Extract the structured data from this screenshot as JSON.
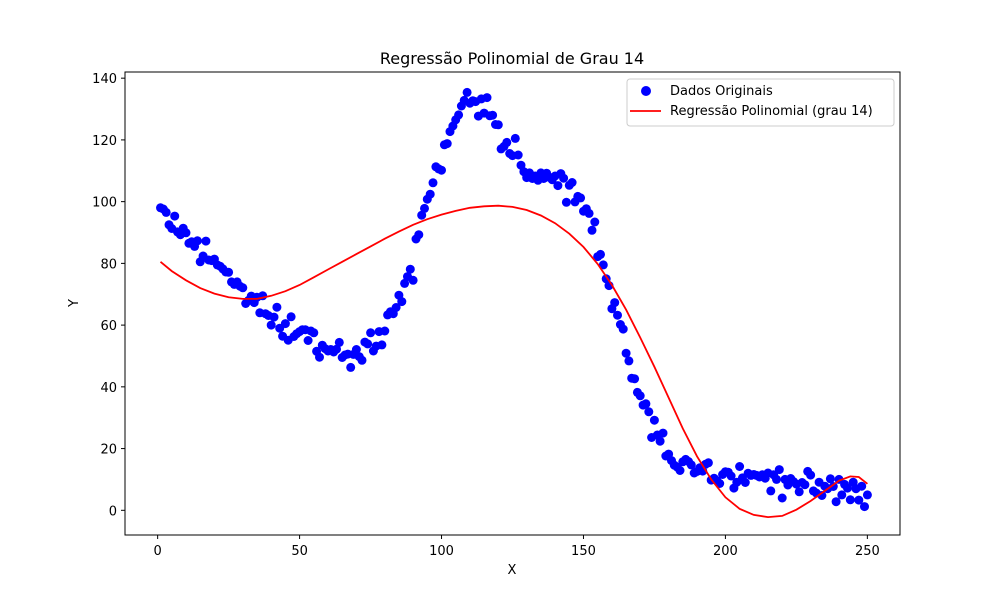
{
  "chart_data": {
    "type": "scatter",
    "title": "Regressão Polinomial de Grau 14",
    "xlabel": "X",
    "ylabel": "Y",
    "xlim": [
      -11.5,
      261.5
    ],
    "ylim": [
      -8,
      142
    ],
    "xticks": [
      0,
      50,
      100,
      150,
      200,
      250
    ],
    "yticks": [
      0,
      20,
      40,
      60,
      80,
      100,
      120,
      140
    ],
    "grid": false,
    "legend_position": "top-right",
    "series": [
      {
        "name": "Dados Originais",
        "kind": "scatter",
        "color": "#0000ff",
        "points": [
          [
            1,
            98
          ],
          [
            2,
            97.6
          ],
          [
            3,
            96.5
          ],
          [
            4,
            92.5
          ],
          [
            5,
            91.3
          ],
          [
            6,
            95.3
          ],
          [
            7,
            90.2
          ],
          [
            8,
            89.3
          ],
          [
            9,
            91.4
          ],
          [
            10,
            89.9
          ],
          [
            11,
            86.5
          ],
          [
            12,
            87
          ],
          [
            13,
            85.5
          ],
          [
            14,
            87.3
          ],
          [
            15,
            80.5
          ],
          [
            16,
            82.4
          ],
          [
            17,
            87.2
          ],
          [
            18,
            81.1
          ],
          [
            19,
            80.9
          ],
          [
            20,
            81.4
          ],
          [
            21,
            79.5
          ],
          [
            22,
            79.1
          ],
          [
            23,
            78.2
          ],
          [
            24,
            77.2
          ],
          [
            25,
            77.1
          ],
          [
            26,
            74
          ],
          [
            27,
            73.2
          ],
          [
            28,
            74
          ],
          [
            29,
            72.6
          ],
          [
            30,
            72.1
          ],
          [
            31,
            67
          ],
          [
            32,
            68
          ],
          [
            33,
            69.4
          ],
          [
            34,
            67.3
          ],
          [
            35,
            69
          ],
          [
            36,
            64
          ],
          [
            37,
            69.5
          ],
          [
            38,
            63.7
          ],
          [
            39,
            63.1
          ],
          [
            40,
            60
          ],
          [
            41,
            62.6
          ],
          [
            42,
            65.8
          ],
          [
            43,
            59
          ],
          [
            44,
            56.4
          ],
          [
            45,
            60.5
          ],
          [
            46,
            55.1
          ],
          [
            47,
            62.7
          ],
          [
            48,
            56.3
          ],
          [
            49,
            57.2
          ],
          [
            50,
            57.9
          ],
          [
            51,
            58.5
          ],
          [
            52,
            58.5
          ],
          [
            53,
            55
          ],
          [
            54,
            58.1
          ],
          [
            55,
            57.5
          ],
          [
            56,
            51.5
          ],
          [
            57,
            49.6
          ],
          [
            58,
            53.5
          ],
          [
            59,
            52.4
          ],
          [
            60,
            51.6
          ],
          [
            61,
            52.1
          ],
          [
            62,
            51.3
          ],
          [
            63,
            52.2
          ],
          [
            64,
            54.4
          ],
          [
            65,
            49.5
          ],
          [
            66,
            50.3
          ],
          [
            67,
            50.6
          ],
          [
            68,
            46.3
          ],
          [
            69,
            50.5
          ],
          [
            70,
            52.1
          ],
          [
            71,
            49.8
          ],
          [
            72,
            48.6
          ],
          [
            73,
            54.5
          ],
          [
            74,
            53.9
          ],
          [
            75,
            57.5
          ],
          [
            76,
            51.6
          ],
          [
            77,
            53.2
          ],
          [
            78,
            57.9
          ],
          [
            79,
            53.6
          ],
          [
            80,
            58.1
          ],
          [
            81,
            63.3
          ],
          [
            82,
            64.3
          ],
          [
            83,
            63.7
          ],
          [
            84,
            65.7
          ],
          [
            85,
            69.7
          ],
          [
            86,
            67.6
          ],
          [
            87,
            73.5
          ],
          [
            88,
            75.7
          ],
          [
            89,
            78.1
          ],
          [
            90,
            74.5
          ],
          [
            91,
            87.9
          ],
          [
            92,
            89.3
          ],
          [
            93,
            95.6
          ],
          [
            94,
            97.8
          ],
          [
            95,
            100.8
          ],
          [
            96,
            102.4
          ],
          [
            97,
            106.1
          ],
          [
            98,
            111.3
          ],
          [
            99,
            110.6
          ],
          [
            100,
            110.2
          ],
          [
            101,
            118.4
          ],
          [
            102,
            118.8
          ],
          [
            103,
            122.7
          ],
          [
            104,
            124.5
          ],
          [
            105,
            126.5
          ],
          [
            106,
            128.1
          ],
          [
            107,
            131
          ],
          [
            108,
            132.8
          ],
          [
            109,
            135.4
          ],
          [
            110,
            131.9
          ],
          [
            111,
            132.7
          ],
          [
            112,
            132.4
          ],
          [
            113,
            127.7
          ],
          [
            114,
            133.3
          ],
          [
            115,
            128.7
          ],
          [
            116,
            133.7
          ],
          [
            117,
            127.8
          ],
          [
            118,
            128
          ],
          [
            119,
            125
          ],
          [
            120,
            124.9
          ],
          [
            121,
            117.1
          ],
          [
            122,
            117.9
          ],
          [
            123,
            119.2
          ],
          [
            124,
            115.6
          ],
          [
            125,
            114.9
          ],
          [
            126,
            120.5
          ],
          [
            127,
            115.1
          ],
          [
            128,
            111.8
          ],
          [
            129,
            109.7
          ],
          [
            130,
            107.8
          ],
          [
            131,
            109.3
          ],
          [
            132,
            107.5
          ],
          [
            133,
            108.3
          ],
          [
            134,
            106.9
          ],
          [
            135,
            109.3
          ],
          [
            136,
            107.5
          ],
          [
            137,
            109.2
          ],
          [
            138,
            107.9
          ],
          [
            139,
            107.1
          ],
          [
            140,
            108.3
          ],
          [
            141,
            105.2
          ],
          [
            142,
            109.1
          ],
          [
            143,
            107.6
          ],
          [
            144,
            99.8
          ],
          [
            145,
            105.3
          ],
          [
            146,
            106.2
          ],
          [
            147,
            99.9
          ],
          [
            148,
            101.7
          ],
          [
            149,
            101.2
          ],
          [
            150,
            96.9
          ],
          [
            151,
            97.7
          ],
          [
            152,
            96.2
          ],
          [
            153,
            90.7
          ],
          [
            154,
            93.4
          ],
          [
            155,
            82.2
          ],
          [
            156,
            82.9
          ],
          [
            157,
            79.5
          ],
          [
            158,
            75
          ],
          [
            159,
            72.8
          ],
          [
            160,
            65.3
          ],
          [
            161,
            67.3
          ],
          [
            162,
            63.2
          ],
          [
            163,
            60.2
          ],
          [
            164,
            58.7
          ],
          [
            165,
            50.9
          ],
          [
            166,
            48.4
          ],
          [
            167,
            42.8
          ],
          [
            168,
            42.6
          ],
          [
            169,
            38.2
          ],
          [
            170,
            37.1
          ],
          [
            171,
            34.1
          ],
          [
            172,
            34.5
          ],
          [
            173,
            31.9
          ],
          [
            174,
            23.6
          ],
          [
            175,
            29.2
          ],
          [
            176,
            24.4
          ],
          [
            177,
            22.4
          ],
          [
            178,
            25
          ],
          [
            179,
            17.6
          ],
          [
            180,
            18.2
          ],
          [
            181,
            16.1
          ],
          [
            182,
            14.6
          ],
          [
            183,
            14
          ],
          [
            184,
            12.9
          ],
          [
            185,
            15.7
          ],
          [
            186,
            16.5
          ],
          [
            187,
            15.8
          ],
          [
            188,
            14.7
          ],
          [
            189,
            12.1
          ],
          [
            190,
            12.6
          ],
          [
            191,
            13.8
          ],
          [
            192,
            12.7
          ],
          [
            193,
            14.9
          ],
          [
            194,
            15.4
          ],
          [
            195,
            9.8
          ],
          [
            196,
            10.4
          ],
          [
            197,
            9.6
          ],
          [
            198,
            8.7
          ],
          [
            199,
            11.6
          ],
          [
            200,
            12.5
          ],
          [
            201,
            12.3
          ],
          [
            202,
            11.1
          ],
          [
            203,
            7.2
          ],
          [
            204,
            9.1
          ],
          [
            205,
            14.2
          ],
          [
            206,
            10.5
          ],
          [
            207,
            9
          ],
          [
            208,
            12
          ],
          [
            209,
            11.3
          ],
          [
            210,
            11.6
          ],
          [
            211,
            11.3
          ],
          [
            212,
            10.8
          ],
          [
            213,
            11.5
          ],
          [
            214,
            10.4
          ],
          [
            215,
            12.1
          ],
          [
            216,
            6.3
          ],
          [
            217,
            11.5
          ],
          [
            218,
            10
          ],
          [
            219,
            13.2
          ],
          [
            220,
            4
          ],
          [
            221,
            10
          ],
          [
            222,
            8.2
          ],
          [
            223,
            10.3
          ],
          [
            224,
            9.3
          ],
          [
            225,
            8.5
          ],
          [
            226,
            6
          ],
          [
            227,
            9
          ],
          [
            228,
            8.3
          ],
          [
            229,
            12.6
          ],
          [
            230,
            11.4
          ],
          [
            231,
            6.3
          ],
          [
            232,
            5.6
          ],
          [
            233,
            9.1
          ],
          [
            234,
            4.8
          ],
          [
            235,
            7.8
          ],
          [
            236,
            7
          ],
          [
            237,
            10.2
          ],
          [
            238,
            7.7
          ],
          [
            239,
            2.8
          ],
          [
            240,
            10
          ],
          [
            241,
            5
          ],
          [
            242,
            8.4
          ],
          [
            243,
            7.2
          ],
          [
            244,
            3.4
          ],
          [
            245,
            9.1
          ],
          [
            246,
            7
          ],
          [
            247,
            3.3
          ],
          [
            248,
            7.8
          ],
          [
            249,
            1.2
          ],
          [
            250,
            5
          ]
        ]
      },
      {
        "name": "Regressão Polinomial (grau 14)",
        "kind": "line",
        "color": "#ff0000",
        "points": [
          [
            1,
            80.5
          ],
          [
            5,
            77.5
          ],
          [
            10,
            74.5
          ],
          [
            15,
            72
          ],
          [
            20,
            70.2
          ],
          [
            25,
            69
          ],
          [
            30,
            68.5
          ],
          [
            35,
            68.5
          ],
          [
            40,
            69.5
          ],
          [
            45,
            71
          ],
          [
            50,
            73
          ],
          [
            55,
            75.5
          ],
          [
            60,
            78
          ],
          [
            65,
            80.5
          ],
          [
            70,
            83
          ],
          [
            75,
            85.5
          ],
          [
            80,
            88
          ],
          [
            85,
            90.3
          ],
          [
            90,
            92.5
          ],
          [
            95,
            94.3
          ],
          [
            100,
            95.8
          ],
          [
            105,
            97
          ],
          [
            110,
            98
          ],
          [
            115,
            98.5
          ],
          [
            120,
            98.7
          ],
          [
            125,
            98.3
          ],
          [
            130,
            97.3
          ],
          [
            135,
            95.5
          ],
          [
            140,
            93
          ],
          [
            145,
            89.6
          ],
          [
            150,
            85.3
          ],
          [
            155,
            79.8
          ],
          [
            160,
            73
          ],
          [
            165,
            65
          ],
          [
            170,
            56
          ],
          [
            175,
            46.5
          ],
          [
            180,
            36.5
          ],
          [
            185,
            26.5
          ],
          [
            190,
            17.5
          ],
          [
            195,
            10
          ],
          [
            200,
            4.2
          ],
          [
            205,
            0.5
          ],
          [
            210,
            -1.5
          ],
          [
            215,
            -2.2
          ],
          [
            220,
            -1.8
          ],
          [
            225,
            0.2
          ],
          [
            230,
            3
          ],
          [
            235,
            6.3
          ],
          [
            240,
            9.6
          ],
          [
            244,
            11
          ],
          [
            247,
            10.8
          ],
          [
            250,
            8.6
          ]
        ]
      }
    ]
  }
}
